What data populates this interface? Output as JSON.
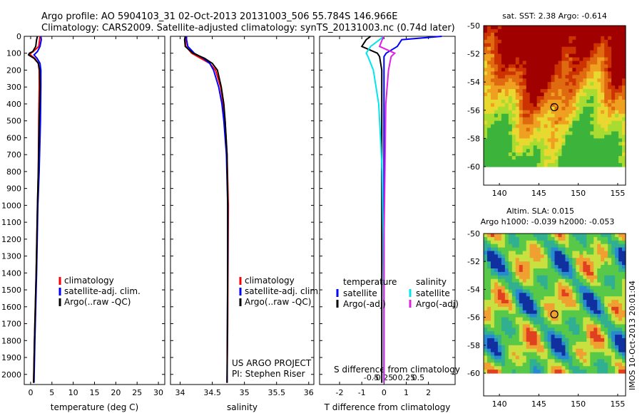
{
  "title": {
    "line1": "Argo profile: AO 5904103_31 02-Oct-2013 20131003_506 55.784S 146.966E",
    "line2": "Climatology: CARS2009. Satellite-adjusted climatology: synTS_20131003.nc (0.74d later)"
  },
  "side_label": "IMOS 10-Oct-2013 20:01:04",
  "colors": {
    "climatology": "#ff0000",
    "satellite": "#0000ff",
    "argo": "#000000",
    "sat_diff": "#00e5ee",
    "argo_diff": "#e020e0",
    "land": "#a00000"
  },
  "chart_data": [
    {
      "type": "line",
      "id": "temperature",
      "xlabel": "temperature (deg C)",
      "xlim": [
        -1.5,
        31.5
      ],
      "xticks": [
        0,
        5,
        10,
        15,
        20,
        25,
        30
      ],
      "ylim": [
        2060,
        0
      ],
      "yticks": [
        0,
        100,
        200,
        300,
        400,
        500,
        600,
        700,
        800,
        900,
        1000,
        1100,
        1200,
        1300,
        1400,
        1500,
        1600,
        1700,
        1800,
        1900,
        2000
      ],
      "legend": [
        "climatology",
        "satellite-adj. clim.",
        "Argo(..raw -QC)"
      ],
      "legend_position": "bottom-center",
      "series": [
        {
          "name": "climatology",
          "color": "#ff0000",
          "depth": [
            0,
            20,
            60,
            90,
            100,
            110,
            130,
            160,
            200,
            300,
            500,
            800,
            1000,
            1400,
            1800,
            2050
          ],
          "values": [
            2.2,
            2.1,
            1.9,
            0.6,
            0.0,
            -0.1,
            1.0,
            1.8,
            2.0,
            2.0,
            1.9,
            1.8,
            1.6,
            1.3,
            0.9,
            0.7
          ]
        },
        {
          "name": "satellite-adj. clim.",
          "color": "#0000ff",
          "depth": [
            0,
            20,
            60,
            90,
            100,
            110,
            130,
            160,
            200,
            300,
            500,
            800,
            1000,
            1400,
            1800,
            2050
          ],
          "values": [
            2.4,
            2.5,
            2.2,
            1.6,
            1.2,
            0.8,
            1.5,
            2.2,
            2.4,
            2.4,
            2.3,
            2.0,
            1.7,
            1.4,
            1.0,
            0.8
          ]
        },
        {
          "name": "Argo(..raw -QC)",
          "color": "#000000",
          "depth": [
            0,
            20,
            60,
            90,
            100,
            110,
            130,
            160,
            200,
            300,
            500,
            800,
            1000,
            1400,
            1800,
            2050
          ],
          "values": [
            1.6,
            1.4,
            1.2,
            0.5,
            -0.3,
            -0.5,
            0.8,
            1.8,
            2.1,
            2.2,
            2.0,
            1.8,
            1.6,
            1.3,
            0.9,
            0.7
          ]
        }
      ]
    },
    {
      "type": "line",
      "id": "salinity",
      "xlabel": "salinity",
      "xlim": [
        33.85,
        36.08
      ],
      "xticks": [
        34,
        34.5,
        35,
        35.5,
        36
      ],
      "ylim": [
        2060,
        0
      ],
      "legend": [
        "climatology",
        "satellite-adj. clim.",
        "Argo(..raw -QC)"
      ],
      "legend_position": "bottom-right",
      "annotation": [
        "US ARGO PROJECT",
        "PI: Stephen Riser"
      ],
      "series": [
        {
          "name": "climatology",
          "color": "#ff0000",
          "depth": [
            0,
            20,
            60,
            100,
            130,
            160,
            200,
            300,
            400,
            500,
            700,
            1000,
            1300,
            1700,
            2050
          ],
          "values": [
            34.1,
            34.08,
            34.09,
            34.18,
            34.32,
            34.46,
            34.55,
            34.63,
            34.67,
            34.7,
            34.73,
            34.75,
            34.745,
            34.74,
            34.73
          ]
        },
        {
          "name": "satellite-adj. clim.",
          "color": "#0000ff",
          "depth": [
            0,
            20,
            60,
            100,
            130,
            160,
            200,
            300,
            400,
            500,
            700,
            1000,
            1300,
            1700,
            2050
          ],
          "values": [
            34.1,
            34.1,
            34.12,
            34.22,
            34.36,
            34.46,
            34.52,
            34.6,
            34.65,
            34.68,
            34.72,
            34.74,
            34.74,
            34.735,
            34.73
          ]
        },
        {
          "name": "Argo(..raw -QC)",
          "color": "#000000",
          "depth": [
            0,
            20,
            60,
            100,
            130,
            160,
            200,
            300,
            400,
            500,
            700,
            1000,
            1300,
            1700,
            2050
          ],
          "values": [
            34.08,
            34.07,
            34.08,
            34.2,
            34.38,
            34.5,
            34.58,
            34.64,
            34.68,
            34.7,
            34.73,
            34.74,
            34.74,
            34.735,
            34.73
          ]
        }
      ]
    },
    {
      "type": "line",
      "id": "difference",
      "xlabel": "T difference from climatology",
      "xlabel_top": "S difference from climatology",
      "xlim": [
        -2.9,
        3.2
      ],
      "xticks": [
        -2,
        -1,
        0,
        1,
        2
      ],
      "sticks": [
        -0.5,
        -0.25,
        0,
        0.25,
        0.5
      ],
      "ylim": [
        2060,
        0
      ],
      "legend_groups": [
        {
          "title": "temperature",
          "items": [
            "satellite",
            "Argo(-adj)"
          ]
        },
        {
          "title": "salinity",
          "items": [
            "satellite",
            "Argo(-adj)"
          ]
        }
      ],
      "series": [
        {
          "name": "temperature satellite",
          "color": "#0000ff",
          "depth": [
            0,
            20,
            60,
            100,
            120,
            200,
            400,
            800,
            1200,
            1600,
            2050
          ],
          "values": [
            2.6,
            0.8,
            0.6,
            0.1,
            0.0,
            0.0,
            0.0,
            0.0,
            0.0,
            0.0,
            0.0
          ]
        },
        {
          "name": "temperature Argo(-adj)",
          "color": "#000000",
          "depth": [
            0,
            20,
            60,
            100,
            120,
            200,
            400,
            800,
            1200,
            1600,
            2050
          ],
          "values": [
            -0.6,
            -0.8,
            -1.0,
            -0.3,
            -0.2,
            -0.1,
            -0.1,
            -0.1,
            -0.1,
            -0.1,
            -0.1
          ]
        },
        {
          "name": "salinity satellite",
          "color": "#00e5ee",
          "depth": [
            0,
            20,
            60,
            100,
            120,
            200,
            400,
            800,
            1200,
            1600,
            2050
          ],
          "values": [
            0.0,
            -0.05,
            -0.15,
            -0.2,
            -0.18,
            -0.12,
            -0.06,
            -0.02,
            -0.01,
            0.0,
            0.0
          ]
        },
        {
          "name": "salinity Argo(-adj)",
          "color": "#e020e0",
          "depth": [
            0,
            20,
            60,
            100,
            120,
            200,
            400,
            800,
            1200,
            1600,
            2050
          ],
          "values": [
            0.0,
            -0.02,
            -0.05,
            0.12,
            0.08,
            0.05,
            0.02,
            0.01,
            0.0,
            0.0,
            0.0
          ]
        }
      ]
    },
    {
      "type": "heatmap",
      "id": "sst-map",
      "title": "sat. SST: 2.38 Argo: -0.614",
      "xlim": [
        138,
        156
      ],
      "ylim": [
        -60,
        -50
      ],
      "xticks": [
        140,
        145,
        150,
        155
      ],
      "yticks": [
        -50,
        -52,
        -54,
        -56,
        -58,
        -60
      ],
      "marker": {
        "lon": 146.966,
        "lat": -55.784
      }
    },
    {
      "type": "heatmap",
      "id": "sla-map",
      "title_line1": "Altim. SLA: 0.015",
      "title_line2": "Argo h1000: -0.039 h2000: -0.053",
      "xlim": [
        138,
        156
      ],
      "ylim": [
        -60,
        -50
      ],
      "xticks": [
        140,
        145,
        150,
        155
      ],
      "yticks": [
        -50,
        -52,
        -54,
        -56,
        -58,
        -60
      ],
      "marker": {
        "lon": 146.966,
        "lat": -55.784
      }
    }
  ]
}
